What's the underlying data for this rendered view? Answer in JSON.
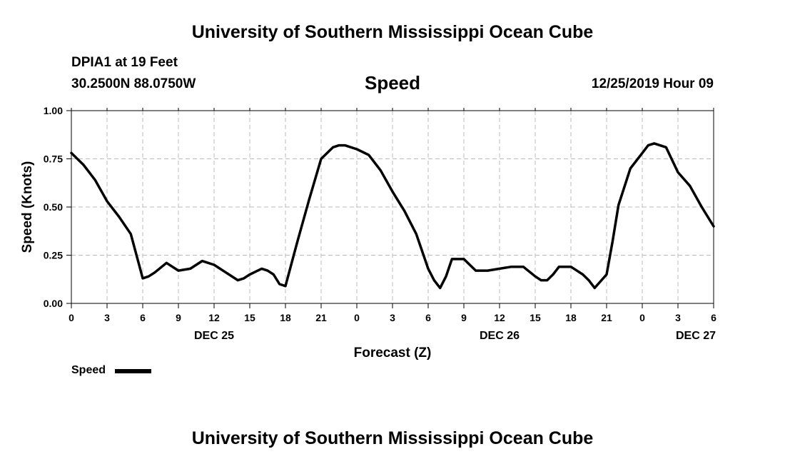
{
  "header": {
    "title": "University of Southern Mississippi Ocean Cube",
    "station": "DPIA1 at 19 Feet",
    "coords": "30.2500N 88.0750W",
    "variable": "Speed",
    "datetime": "12/25/2019 Hour 09"
  },
  "footer": {
    "title": "University of Southern Mississippi Ocean Cube"
  },
  "legend": {
    "label": "Speed"
  },
  "colors": {
    "line": "#000000",
    "grid": "#bbbbbb",
    "background": "#ffffff"
  },
  "chart_data": {
    "type": "line",
    "xlabel": "Forecast (Z)",
    "ylabel": "Speed (Knots)",
    "x_unit": "hours from DEC 25 00Z",
    "xlim": [
      0,
      54
    ],
    "ylim": [
      0,
      1
    ],
    "grid": true,
    "legend_position": "bottom-left",
    "x_ticks": [
      {
        "x": 0,
        "label": "0"
      },
      {
        "x": 3,
        "label": "3"
      },
      {
        "x": 6,
        "label": "6"
      },
      {
        "x": 9,
        "label": "9"
      },
      {
        "x": 12,
        "label": "12"
      },
      {
        "x": 15,
        "label": "15"
      },
      {
        "x": 18,
        "label": "18"
      },
      {
        "x": 21,
        "label": "21"
      },
      {
        "x": 24,
        "label": "0"
      },
      {
        "x": 27,
        "label": "3"
      },
      {
        "x": 30,
        "label": "6"
      },
      {
        "x": 33,
        "label": "9"
      },
      {
        "x": 36,
        "label": "12"
      },
      {
        "x": 39,
        "label": "15"
      },
      {
        "x": 42,
        "label": "18"
      },
      {
        "x": 45,
        "label": "21"
      },
      {
        "x": 48,
        "label": "0"
      },
      {
        "x": 51,
        "label": "3"
      },
      {
        "x": 54,
        "label": "6"
      }
    ],
    "y_ticks": [
      {
        "y": 0,
        "label": "0.00"
      },
      {
        "y": 0.25,
        "label": "0.25"
      },
      {
        "y": 0.5,
        "label": "0.50"
      },
      {
        "y": 0.75,
        "label": "0.75"
      },
      {
        "y": 1,
        "label": "1.00"
      }
    ],
    "date_labels": [
      {
        "x": 12,
        "label": "DEC 25"
      },
      {
        "x": 36,
        "label": "DEC 26"
      },
      {
        "x": 52.5,
        "label": "DEC 27"
      }
    ],
    "series": [
      {
        "name": "Speed",
        "x": [
          0,
          1,
          2,
          3,
          4,
          5,
          6,
          6.5,
          7,
          8,
          9,
          10,
          11,
          12,
          13,
          14,
          14.5,
          15,
          16,
          16.5,
          17,
          17.5,
          18,
          19,
          20,
          21,
          22,
          22.5,
          23,
          24,
          25,
          26,
          27,
          28,
          29,
          30,
          30.5,
          31,
          31.5,
          32,
          33,
          33.5,
          34,
          35,
          36,
          37,
          38,
          39,
          39.5,
          40,
          40.5,
          41,
          42,
          43,
          43.5,
          44,
          45,
          45.5,
          46,
          47,
          48,
          48.5,
          49,
          50,
          51,
          52,
          53,
          54
        ],
        "y": [
          0.78,
          0.72,
          0.64,
          0.53,
          0.45,
          0.36,
          0.13,
          0.14,
          0.16,
          0.21,
          0.17,
          0.18,
          0.22,
          0.2,
          0.16,
          0.12,
          0.13,
          0.15,
          0.18,
          0.17,
          0.15,
          0.1,
          0.09,
          0.32,
          0.54,
          0.75,
          0.81,
          0.82,
          0.82,
          0.8,
          0.77,
          0.69,
          0.58,
          0.48,
          0.36,
          0.18,
          0.12,
          0.08,
          0.14,
          0.23,
          0.23,
          0.2,
          0.17,
          0.17,
          0.18,
          0.19,
          0.19,
          0.14,
          0.12,
          0.12,
          0.15,
          0.19,
          0.19,
          0.15,
          0.12,
          0.08,
          0.15,
          0.32,
          0.51,
          0.7,
          0.78,
          0.82,
          0.83,
          0.81,
          0.68,
          0.61,
          0.5,
          0.4
        ]
      }
    ]
  }
}
